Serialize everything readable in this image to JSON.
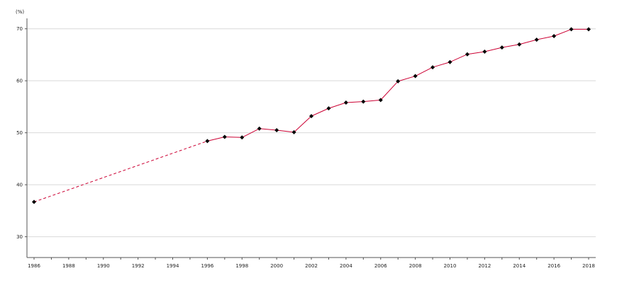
{
  "chart_data": {
    "type": "line",
    "unit_label": "(%)",
    "xlim": [
      1986,
      2018
    ],
    "ylim": [
      26,
      72
    ],
    "x_ticks": [
      1986,
      1987,
      1988,
      1989,
      1990,
      1991,
      1992,
      1993,
      1994,
      1995,
      1996,
      1997,
      1998,
      1999,
      2000,
      2001,
      2002,
      2003,
      2004,
      2005,
      2006,
      2007,
      2008,
      2009,
      2010,
      2011,
      2012,
      2013,
      2014,
      2015,
      2016,
      2017,
      2018
    ],
    "x_tick_labels": [
      "1986",
      "1988",
      "1990",
      "1992",
      "1994",
      "1996",
      "1998",
      "2000",
      "2002",
      "2004",
      "2006",
      "2008",
      "2010",
      "2012",
      "2014",
      "2016",
      "2018"
    ],
    "y_ticks": [
      30,
      40,
      50,
      60,
      70
    ],
    "y_tick_labels": [
      "30",
      "40",
      "50",
      "60",
      "70"
    ],
    "grid": "horizontal",
    "line_color": "#cc0033",
    "marker_color": "#000000",
    "gridline_color": "#d9d9d9",
    "axis_color": "#555555",
    "series": [
      {
        "points": [
          {
            "x": 1986,
            "y": 36.7
          },
          {
            "x": 1996,
            "y": 48.4
          },
          {
            "x": 1997,
            "y": 49.2
          },
          {
            "x": 1998,
            "y": 49.1
          },
          {
            "x": 1999,
            "y": 50.8
          },
          {
            "x": 2000,
            "y": 50.5
          },
          {
            "x": 2001,
            "y": 50.1
          },
          {
            "x": 2002,
            "y": 53.2
          },
          {
            "x": 2003,
            "y": 54.7
          },
          {
            "x": 2004,
            "y": 55.8
          },
          {
            "x": 2005,
            "y": 56.0
          },
          {
            "x": 2006,
            "y": 56.3
          },
          {
            "x": 2007,
            "y": 59.9
          },
          {
            "x": 2008,
            "y": 60.9
          },
          {
            "x": 2009,
            "y": 62.6
          },
          {
            "x": 2010,
            "y": 63.6
          },
          {
            "x": 2011,
            "y": 65.1
          },
          {
            "x": 2012,
            "y": 65.6
          },
          {
            "x": 2013,
            "y": 66.4
          },
          {
            "x": 2014,
            "y": 67.0
          },
          {
            "x": 2015,
            "y": 67.9
          },
          {
            "x": 2016,
            "y": 68.6
          },
          {
            "x": 2017,
            "y": 69.9
          },
          {
            "x": 2018,
            "y": 69.9
          }
        ],
        "dashed_segments": [
          [
            1986,
            1996
          ]
        ]
      }
    ]
  }
}
